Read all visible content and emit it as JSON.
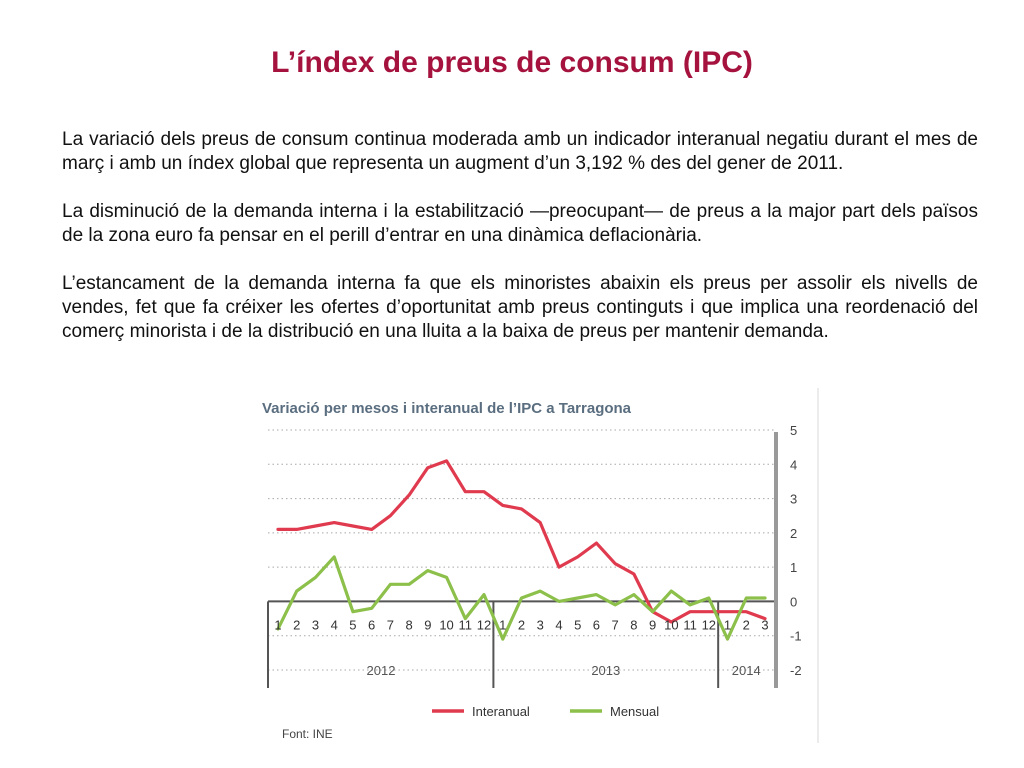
{
  "slide": {
    "title": "L’índex de preus de consum (IPC)",
    "paragraphs": [
      "La variació dels preus de consum continua moderada amb un indicador interanual negatiu durant el mes de març i amb un índex global que representa un augment d’un 3,192 % des del gener de 2011.",
      "La disminució de la demanda interna i la estabilització —preocupant— de preus a la major part dels països de la zona euro fa pensar en el perill d’entrar en una dinàmica deflacionària.",
      "L’estancament de la demanda interna fa que els minoristes abaixin els preus per assolir els nivells de vendes, fet que fa créixer les ofertes d’oportunitat amb preus continguts i que implica una reordenació del comerç minorista i de la distribució en una lluita a la baixa de preus per mantenir demanda."
    ]
  },
  "chart_data": {
    "type": "line",
    "title": "Variació per mesos i interanual de l’IPC a Tarragona",
    "categories": [
      "1",
      "2",
      "3",
      "4",
      "5",
      "6",
      "7",
      "8",
      "9",
      "10",
      "11",
      "12",
      "1",
      "2",
      "3",
      "4",
      "5",
      "6",
      "7",
      "8",
      "9",
      "10",
      "11",
      "12",
      "1",
      "2",
      "3"
    ],
    "year_groups": [
      {
        "label": "2012",
        "start": 0,
        "end": 11
      },
      {
        "label": "2013",
        "start": 12,
        "end": 23
      },
      {
        "label": "2014",
        "start": 24,
        "end": 26
      }
    ],
    "series": [
      {
        "name": "Interanual",
        "color": "#e03a4e",
        "values": [
          2.1,
          2.1,
          2.2,
          2.3,
          2.2,
          2.1,
          2.5,
          3.1,
          3.9,
          4.1,
          3.2,
          3.2,
          2.8,
          2.7,
          2.3,
          1.0,
          1.3,
          1.7,
          1.1,
          0.8,
          -0.3,
          -0.6,
          -0.3,
          -0.3,
          -0.3,
          -0.3,
          -0.5
        ]
      },
      {
        "name": "Mensual",
        "color": "#8cc04b",
        "values": [
          -0.8,
          0.3,
          0.7,
          1.3,
          -0.3,
          -0.2,
          0.5,
          0.5,
          0.9,
          0.7,
          -0.5,
          0.2,
          -1.1,
          0.1,
          0.3,
          0.0,
          0.1,
          0.2,
          -0.1,
          0.2,
          -0.3,
          0.3,
          -0.1,
          0.1,
          -1.1,
          0.1,
          0.1
        ]
      }
    ],
    "ylim": [
      -2,
      5
    ],
    "yticks": [
      "5",
      "4",
      "3",
      "2",
      "1",
      "0",
      "-1",
      "-2"
    ],
    "ytick_values": [
      5,
      4,
      3,
      2,
      1,
      0,
      -1,
      -2
    ],
    "y_axis_position": "right",
    "grid": "dotted-horizontal",
    "legend_position": "bottom",
    "source": "Font: INE"
  }
}
